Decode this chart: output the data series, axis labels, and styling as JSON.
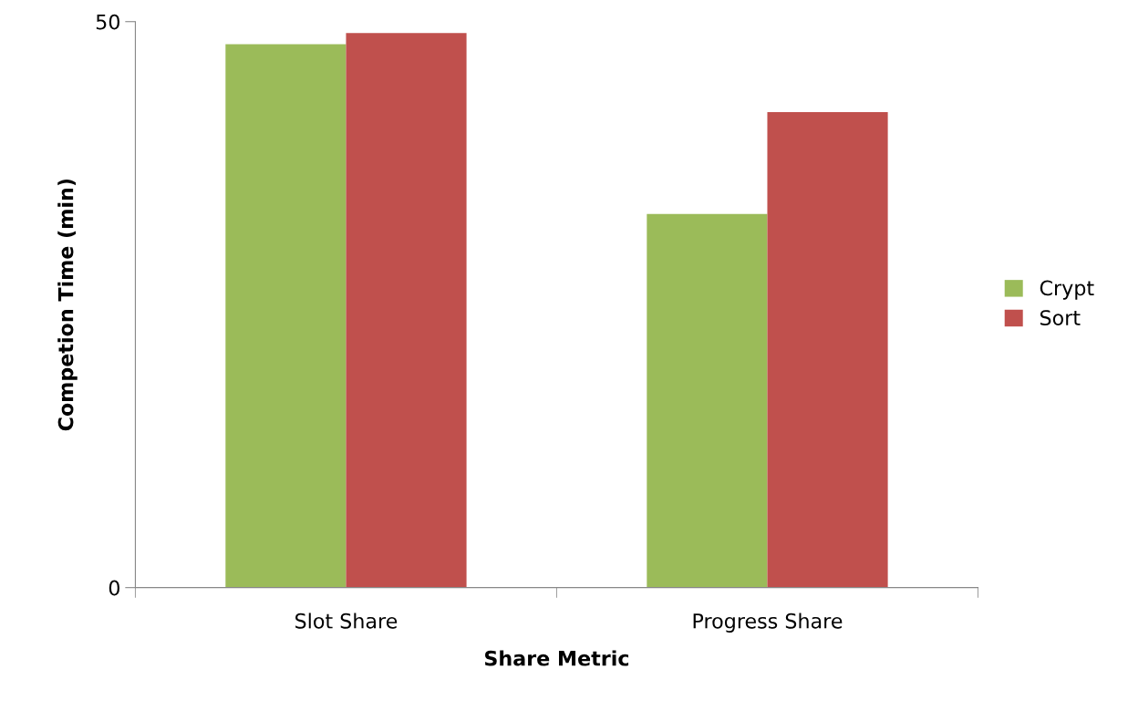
{
  "chart_data": {
    "type": "bar",
    "xlabel": "Share Metric",
    "ylabel": "Competion Time (min)",
    "categories": [
      "Slot Share",
      "Progress Share"
    ],
    "series": [
      {
        "name": "Crypt",
        "color": "#9bbb59",
        "values": [
          48,
          33
        ]
      },
      {
        "name": "Sort",
        "color": "#c0504d",
        "values": [
          49,
          42
        ]
      }
    ],
    "ylim": [
      0,
      50
    ],
    "yticks": [
      0,
      50
    ],
    "grid": false,
    "legend": "right"
  }
}
